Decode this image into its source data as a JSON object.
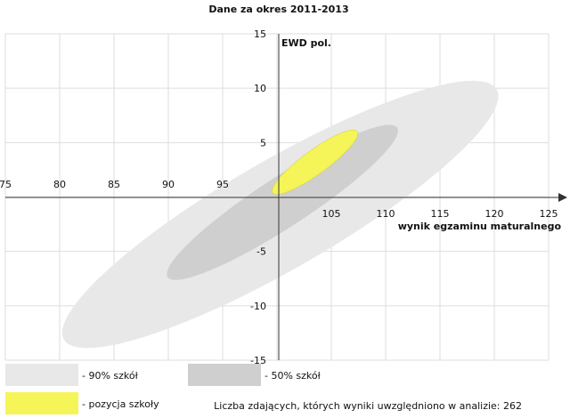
{
  "chart_data": {
    "type": "scatter",
    "title": "Dane za okres 2011-2013",
    "xlabel": "wynik egzaminu maturalnego",
    "ylabel": "EWD pol.",
    "xlim": [
      75,
      125
    ],
    "ylim": [
      -15,
      15
    ],
    "x_ticks": [
      75,
      80,
      85,
      90,
      95,
      100,
      105,
      110,
      115,
      120,
      125
    ],
    "x_tick_labels": [
      "75",
      "80",
      "85",
      "90",
      "95",
      "",
      "105",
      "110",
      "115",
      "120",
      "125"
    ],
    "y_ticks": [
      15,
      10,
      5,
      0,
      -5,
      -10,
      -15
    ],
    "y_tick_labels": [
      "15",
      "10",
      "5",
      "",
      "-5",
      "-10",
      "-15"
    ],
    "grid": true,
    "series": [
      {
        "name": "90% szkół",
        "shape": "ellipse",
        "center": [
          100.3,
          -1.6
        ],
        "semi_axis_major": 23.0,
        "semi_axis_minor": 5.0,
        "angle_deg": 30,
        "color": "#e8e8e8"
      },
      {
        "name": "50% szkół",
        "shape": "ellipse",
        "center": [
          100.5,
          -0.5
        ],
        "semi_axis_major": 12.6,
        "semi_axis_minor": 2.3,
        "angle_deg": 33,
        "color": "#cfcfcf"
      },
      {
        "name": "pozycja szkoły",
        "shape": "ellipse",
        "center": [
          103.5,
          3.2
        ],
        "semi_axis_major": 4.8,
        "semi_axis_minor": 1.1,
        "angle_deg": 36,
        "color": "#f5f55a"
      }
    ],
    "legend": {
      "position": "bottom",
      "items": [
        {
          "label": "- 90% szkół",
          "color": "#e8e8e8"
        },
        {
          "label": "- 50% szkół",
          "color": "#cfcfcf"
        },
        {
          "label": "- pozycja szkoły",
          "color": "#f5f55a"
        }
      ]
    },
    "note": "Liczba zdających, których wyniki uwzględniono w analizie: 262"
  }
}
